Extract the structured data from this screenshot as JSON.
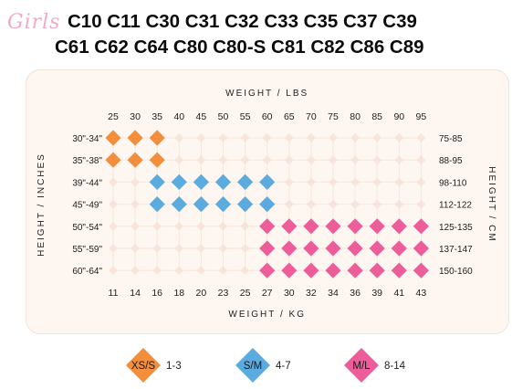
{
  "header": {
    "brand": "Girls",
    "models_line1": "C10 C11 C30 C31 C32 C33 C35 C37 C39",
    "models_line2": "C61 C62 C64 C80 C80-S C81 C82 C86 C89"
  },
  "chart_data": {
    "type": "size-grid",
    "top_axis_title": "WEIGHT / LBS",
    "bottom_axis_title": "WEIGHT / KG",
    "left_axis_title": "HEIGHT / INCHES",
    "right_axis_title": "HEIGHT / CM",
    "weight_lbs": [
      "25",
      "30",
      "35",
      "40",
      "45",
      "50",
      "55",
      "60",
      "65",
      "70",
      "75",
      "80",
      "85",
      "90",
      "95"
    ],
    "weight_kg": [
      "11",
      "14",
      "16",
      "18",
      "20",
      "23",
      "25",
      "27",
      "30",
      "32",
      "34",
      "36",
      "39",
      "41",
      "43"
    ],
    "height_inches": [
      "30\"-34\"",
      "35\"-38\"",
      "39\"-44\"",
      "45\"-49\"",
      "50\"-54\"",
      "55\"-59\"",
      "60\"-64\""
    ],
    "height_cm": [
      "75-85",
      "88-95",
      "98-110",
      "112-122",
      "125-135",
      "137-147",
      "150-160"
    ],
    "sizes": [
      {
        "size": "XS/S",
        "label": "1-3",
        "color": "#f28e3c",
        "rows": [
          0,
          1
        ],
        "cols": [
          0,
          2
        ]
      },
      {
        "size": "S/M",
        "label": "4-7",
        "color": "#5aabdf",
        "rows": [
          2,
          3
        ],
        "cols": [
          2,
          7
        ]
      },
      {
        "size": "M/L",
        "label": "8-14",
        "color": "#ec5d99",
        "rows": [
          4,
          6
        ],
        "cols": [
          7,
          14
        ]
      }
    ],
    "empty_marker_color": "#f6dfd4"
  }
}
